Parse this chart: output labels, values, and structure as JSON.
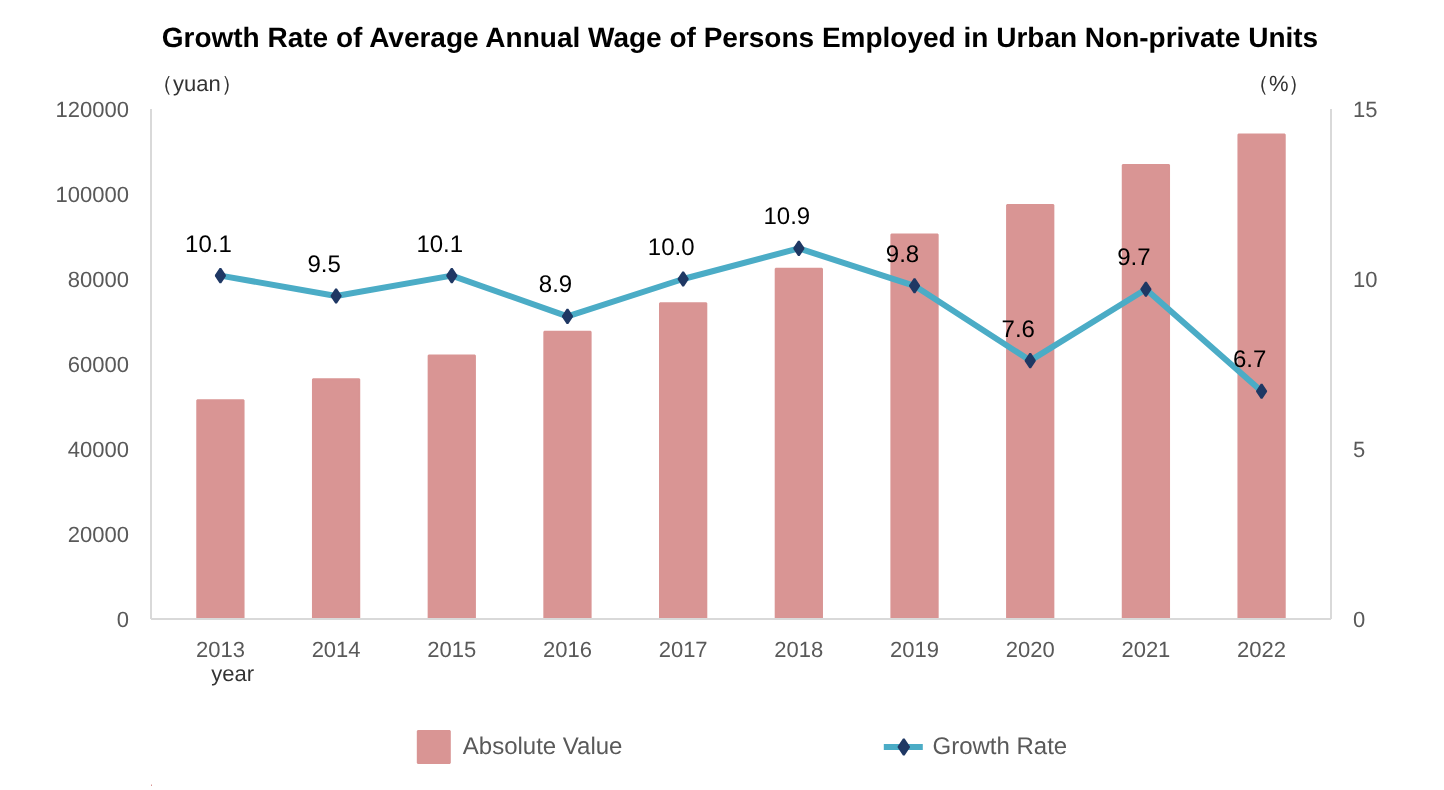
{
  "chart_data": {
    "type": "bar",
    "title": "Growth Rate of Average Annual Wage of Persons Employed in Urban Non-private Units",
    "ylabel": "（yuan）",
    "y2label": "（%）",
    "xlabel": "year",
    "categories": [
      "2013",
      "2014",
      "2015",
      "2016",
      "2017",
      "2018",
      "2019",
      "2020",
      "2021",
      "2022"
    ],
    "series": [
      {
        "name": "Absolute Value",
        "color": "#d99594",
        "values": [
          51500,
          56400,
          62000,
          67600,
          74300,
          82400,
          90500,
          97400,
          106800,
          114000
        ]
      },
      {
        "name": "Growth Rate",
        "type": "line",
        "axis": "y2",
        "color": "#4bacc6",
        "marker": "diamond",
        "values": [
          10.1,
          9.5,
          10.1,
          8.9,
          10.0,
          10.9,
          9.8,
          7.6,
          9.7,
          6.7
        ],
        "value_labels": [
          "10.1",
          "9.5",
          "10.1",
          "8.9",
          "10.0",
          "10.9",
          "9.8",
          "7.6",
          "9.7",
          "6.7"
        ]
      }
    ],
    "ylim": [
      0,
      120000
    ],
    "yticks": [
      0,
      20000,
      40000,
      60000,
      80000,
      100000,
      120000
    ],
    "y2lim": [
      0,
      15
    ],
    "y2ticks": [
      0,
      5,
      10,
      15
    ],
    "grid": false,
    "legend": "bottom"
  }
}
